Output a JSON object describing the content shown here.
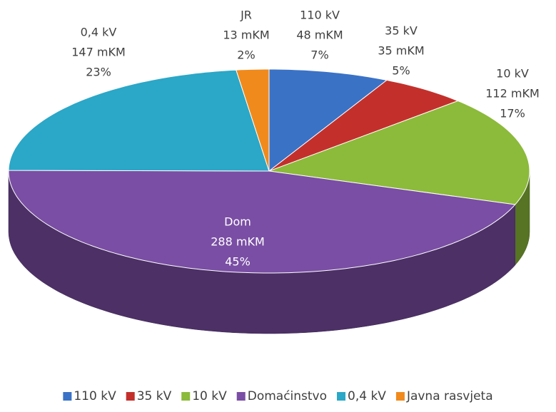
{
  "chart_data": {
    "type": "pie3d",
    "categories": [
      "110  kV",
      "35 kV",
      "10 kV",
      "Domaćinstvo",
      "0,4 kV",
      "Javna rasvjeta"
    ],
    "labels": [
      "110  kV",
      "35 kV",
      "10 kV",
      "Dom",
      "0,4 kV",
      "JR"
    ],
    "values": [
      48,
      35,
      112,
      288,
      147,
      13
    ],
    "value_labels": [
      "48 mKM",
      "35 mKM",
      "112 mKM",
      "288 mKM",
      "147 mKM",
      "13 mKM"
    ],
    "percentages": [
      7,
      5,
      17,
      45,
      23,
      2
    ],
    "percentage_labels": [
      "7%",
      "5%",
      "17%",
      "45%",
      "23%",
      "2%"
    ],
    "colors": [
      "#3a72c6",
      "#c3302b",
      "#8cba3a",
      "#7a4ea4",
      "#2ba7c7",
      "#f08a1c"
    ],
    "legend": "bottom"
  }
}
